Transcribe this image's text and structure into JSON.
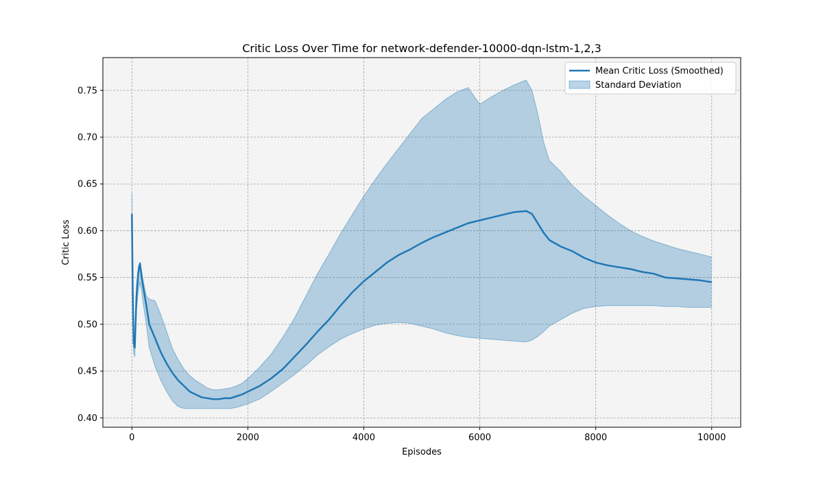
{
  "chart_data": {
    "type": "line",
    "title": "Critic Loss Over Time for network-defender-10000-dqn-lstm-1,2,3",
    "xlabel": "Episodes",
    "ylabel": "Critic Loss",
    "xlim": [
      -500,
      10500
    ],
    "ylim": [
      0.39,
      0.785
    ],
    "x_ticks": [
      0,
      2000,
      4000,
      6000,
      8000,
      10000
    ],
    "y_ticks": [
      0.4,
      0.45,
      0.5,
      0.55,
      0.6,
      0.65,
      0.7,
      0.75
    ],
    "x_tick_labels": [
      "0",
      "2000",
      "4000",
      "6000",
      "8000",
      "10000"
    ],
    "y_tick_labels": [
      "0.40",
      "0.45",
      "0.50",
      "0.55",
      "0.60",
      "0.65",
      "0.70",
      "0.75"
    ],
    "grid": true,
    "legend_position": "top-right",
    "legend": [
      "Mean Critic Loss (Smoothed)",
      "Standard Deviation"
    ],
    "colors": {
      "line": "#1f77b4",
      "band": "#1f77b4",
      "plot_background": "#f4f4f4"
    },
    "series": [
      {
        "name": "Mean Critic Loss (Smoothed)",
        "x": [
          0,
          15,
          30,
          50,
          80,
          110,
          140,
          170,
          200,
          250,
          300,
          400,
          500,
          600,
          700,
          800,
          900,
          1000,
          1100,
          1200,
          1300,
          1400,
          1500,
          1600,
          1700,
          1800,
          1900,
          2000,
          2200,
          2400,
          2600,
          2800,
          3000,
          3200,
          3400,
          3600,
          3800,
          4000,
          4200,
          4400,
          4600,
          4800,
          5000,
          5200,
          5400,
          5600,
          5800,
          6000,
          6200,
          6400,
          6600,
          6800,
          6900,
          7000,
          7100,
          7200,
          7400,
          7600,
          7800,
          8000,
          8200,
          8400,
          8600,
          8800,
          9000,
          9200,
          9400,
          9600,
          9800,
          10000
        ],
        "y": [
          0.618,
          0.54,
          0.48,
          0.475,
          0.53,
          0.555,
          0.565,
          0.55,
          0.538,
          0.52,
          0.5,
          0.485,
          0.47,
          0.458,
          0.448,
          0.44,
          0.434,
          0.428,
          0.425,
          0.422,
          0.421,
          0.42,
          0.42,
          0.421,
          0.421,
          0.423,
          0.425,
          0.428,
          0.434,
          0.442,
          0.452,
          0.465,
          0.478,
          0.492,
          0.505,
          0.52,
          0.534,
          0.546,
          0.556,
          0.566,
          0.574,
          0.58,
          0.587,
          0.593,
          0.598,
          0.603,
          0.608,
          0.611,
          0.614,
          0.617,
          0.62,
          0.621,
          0.618,
          0.608,
          0.598,
          0.59,
          0.583,
          0.578,
          0.571,
          0.566,
          0.563,
          0.561,
          0.559,
          0.556,
          0.554,
          0.55,
          0.549,
          0.548,
          0.547,
          0.545
        ]
      },
      {
        "name": "Standard Deviation",
        "x": [
          0,
          15,
          30,
          50,
          80,
          110,
          140,
          170,
          200,
          250,
          300,
          400,
          500,
          600,
          700,
          800,
          900,
          1000,
          1100,
          1200,
          1300,
          1400,
          1500,
          1600,
          1700,
          1800,
          1900,
          2000,
          2200,
          2400,
          2600,
          2800,
          3000,
          3200,
          3400,
          3600,
          3800,
          4000,
          4200,
          4400,
          4600,
          4800,
          5000,
          5200,
          5400,
          5600,
          5800,
          6000,
          6200,
          6400,
          6600,
          6800,
          6900,
          7000,
          7100,
          7200,
          7400,
          7600,
          7800,
          8000,
          8200,
          8400,
          8600,
          8800,
          9000,
          9200,
          9400,
          9600,
          9800,
          10000
        ],
        "upper": [
          0.64,
          0.56,
          0.49,
          0.485,
          0.542,
          0.562,
          0.566,
          0.557,
          0.545,
          0.53,
          0.527,
          0.525,
          0.51,
          0.492,
          0.474,
          0.462,
          0.452,
          0.445,
          0.44,
          0.436,
          0.432,
          0.43,
          0.43,
          0.431,
          0.432,
          0.434,
          0.437,
          0.442,
          0.454,
          0.468,
          0.486,
          0.506,
          0.53,
          0.554,
          0.575,
          0.597,
          0.617,
          0.637,
          0.655,
          0.672,
          0.688,
          0.704,
          0.72,
          0.73,
          0.74,
          0.748,
          0.753,
          0.735,
          0.743,
          0.75,
          0.756,
          0.761,
          0.75,
          0.725,
          0.695,
          0.675,
          0.663,
          0.648,
          0.637,
          0.627,
          0.617,
          0.608,
          0.6,
          0.594,
          0.589,
          0.585,
          0.581,
          0.578,
          0.575,
          0.572
        ],
        "lower": [
          0.6,
          0.52,
          0.47,
          0.465,
          0.515,
          0.535,
          0.545,
          0.535,
          0.52,
          0.5,
          0.475,
          0.455,
          0.44,
          0.428,
          0.418,
          0.412,
          0.41,
          0.41,
          0.41,
          0.41,
          0.41,
          0.41,
          0.41,
          0.41,
          0.41,
          0.411,
          0.413,
          0.415,
          0.42,
          0.428,
          0.437,
          0.446,
          0.456,
          0.467,
          0.476,
          0.484,
          0.49,
          0.495,
          0.499,
          0.501,
          0.502,
          0.501,
          0.498,
          0.495,
          0.491,
          0.488,
          0.486,
          0.485,
          0.484,
          0.483,
          0.482,
          0.481,
          0.483,
          0.487,
          0.492,
          0.498,
          0.505,
          0.512,
          0.517,
          0.519,
          0.52,
          0.52,
          0.52,
          0.52,
          0.52,
          0.519,
          0.519,
          0.518,
          0.518,
          0.518
        ]
      }
    ]
  }
}
